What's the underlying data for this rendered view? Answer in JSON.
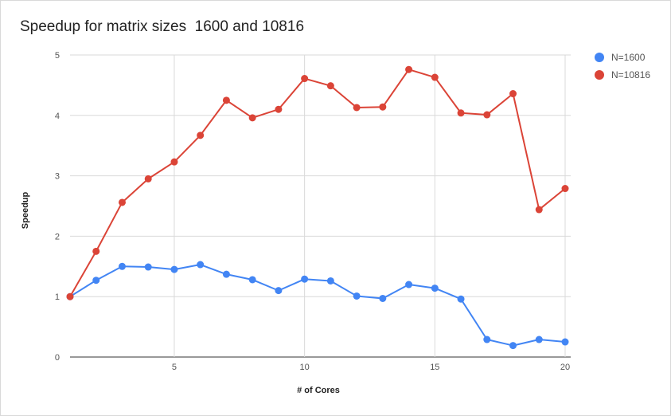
{
  "colors": {
    "n1600": "#4285f4",
    "n10816": "#db4437",
    "grid": "#d9d9d9",
    "baseline": "#333333",
    "tick_text": "#555555"
  },
  "chart_data": {
    "type": "line",
    "title": "Speedup for matrix sizes  1600 and 10816",
    "xlabel": "# of Cores",
    "ylabel": "Speedup",
    "x": [
      1,
      2,
      3,
      4,
      5,
      6,
      7,
      8,
      9,
      10,
      11,
      12,
      13,
      14,
      15,
      16,
      17,
      18,
      19,
      20
    ],
    "xlim": [
      1,
      20
    ],
    "ylim": [
      0,
      5
    ],
    "x_ticks": [
      5,
      10,
      15,
      20
    ],
    "y_ticks": [
      0,
      1,
      2,
      3,
      4,
      5
    ],
    "grid": true,
    "legend_position": "top-right",
    "series": [
      {
        "name": "N=1600",
        "color": "#4285f4",
        "values": [
          1.0,
          1.27,
          1.5,
          1.49,
          1.45,
          1.53,
          1.37,
          1.28,
          1.1,
          1.29,
          1.26,
          1.01,
          0.97,
          1.2,
          1.14,
          0.96,
          0.29,
          0.19,
          0.29,
          0.25
        ]
      },
      {
        "name": "N=10816",
        "color": "#db4437",
        "values": [
          1.0,
          1.75,
          2.56,
          2.95,
          3.23,
          3.67,
          4.25,
          3.96,
          4.1,
          4.61,
          4.49,
          4.13,
          4.14,
          4.76,
          4.63,
          4.04,
          4.01,
          4.36,
          2.44,
          2.79
        ]
      }
    ]
  }
}
